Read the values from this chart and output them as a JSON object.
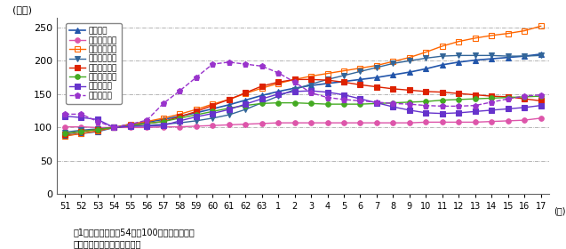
{
  "ylabel": "(指数)",
  "note1": "注1：指数は、昭和54年を100とした場合の値",
  "note2": "　２：国土交通省資料による",
  "ylim": [
    0,
    265
  ],
  "yticks": [
    0,
    50,
    100,
    150,
    200,
    250
  ],
  "xtick_labels": [
    "51",
    "52",
    "53",
    "54",
    "55",
    "56",
    "57",
    "58",
    "59",
    "60",
    "61",
    "62",
    "63",
    "1",
    "2",
    "3",
    "4",
    "5",
    "6",
    "7",
    "8",
    "9",
    "10",
    "11",
    "12",
    "13",
    "14",
    "15",
    "16",
    "17"
  ],
  "year_label": "(年)",
  "series": [
    {
      "name": "車両合計",
      "color": "#2255aa",
      "marker": "^",
      "marker_size": 4,
      "linestyle": "-",
      "linewidth": 1.2,
      "markerface": "fill",
      "values": [
        88,
        91,
        94,
        100,
        105,
        108,
        112,
        117,
        122,
        128,
        134,
        141,
        148,
        154,
        159,
        163,
        166,
        169,
        172,
        175,
        179,
        183,
        188,
        194,
        198,
        201,
        203,
        205,
        207,
        210
      ]
    },
    {
      "name": "事業用乗用車",
      "color": "#dd55aa",
      "marker": "o",
      "marker_size": 4,
      "linestyle": "-",
      "linewidth": 1.0,
      "markerface": "fill",
      "values": [
        101,
        101,
        100,
        100,
        100,
        100,
        101,
        101,
        102,
        103,
        104,
        105,
        106,
        107,
        107,
        107,
        107,
        107,
        107,
        107,
        107,
        107,
        108,
        108,
        108,
        108,
        109,
        110,
        111,
        114
      ]
    },
    {
      "name": "自家用乗用車",
      "color": "#ff6600",
      "marker": "s",
      "marker_size": 4,
      "linestyle": "-",
      "linewidth": 1.0,
      "markerface": "none",
      "values": [
        87,
        91,
        95,
        100,
        105,
        109,
        114,
        120,
        127,
        135,
        142,
        151,
        159,
        166,
        172,
        177,
        181,
        185,
        189,
        193,
        199,
        205,
        213,
        222,
        229,
        234,
        238,
        241,
        245,
        252
      ]
    },
    {
      "name": "事業用貨物車",
      "color": "#336699",
      "marker": "v",
      "marker_size": 5,
      "linestyle": "-",
      "linewidth": 1.0,
      "markerface": "fill",
      "values": [
        93,
        96,
        98,
        100,
        102,
        103,
        105,
        107,
        110,
        114,
        119,
        127,
        137,
        147,
        157,
        165,
        172,
        178,
        184,
        190,
        196,
        200,
        204,
        207,
        208,
        208,
        208,
        207,
        207,
        208
      ]
    },
    {
      "name": "自家用貨物車",
      "color": "#dd2200",
      "marker": "s",
      "marker_size": 5,
      "linestyle": "-",
      "linewidth": 1.0,
      "markerface": "fill",
      "values": [
        90,
        94,
        97,
        100,
        103,
        106,
        109,
        116,
        124,
        133,
        142,
        152,
        162,
        168,
        172,
        172,
        171,
        168,
        164,
        161,
        158,
        156,
        154,
        153,
        151,
        149,
        147,
        146,
        143,
        140
      ]
    },
    {
      "name": "特殊・特軽車",
      "color": "#44aa22",
      "marker": "o",
      "marker_size": 4,
      "linestyle": "-",
      "linewidth": 1.0,
      "markerface": "fill",
      "values": [
        91,
        94,
        97,
        100,
        103,
        106,
        109,
        114,
        119,
        124,
        129,
        133,
        136,
        137,
        137,
        136,
        135,
        135,
        135,
        136,
        137,
        138,
        139,
        141,
        142,
        143,
        144,
        145,
        146,
        147
      ]
    },
    {
      "name": "自動二輪車",
      "color": "#6633cc",
      "marker": "s",
      "marker_size": 4,
      "linestyle": "-",
      "linewidth": 1.0,
      "markerface": "fill",
      "values": [
        117,
        115,
        112,
        100,
        102,
        102,
        103,
        110,
        116,
        121,
        127,
        135,
        143,
        150,
        154,
        155,
        153,
        149,
        143,
        137,
        131,
        126,
        122,
        121,
        122,
        124,
        126,
        128,
        130,
        133
      ]
    },
    {
      "name": "原付自転車",
      "color": "#9933cc",
      "marker": "p",
      "marker_size": 5,
      "linestyle": "--",
      "linewidth": 1.0,
      "markerface": "fill",
      "values": [
        120,
        120,
        109,
        100,
        105,
        111,
        136,
        155,
        175,
        195,
        198,
        195,
        192,
        182,
        168,
        152,
        145,
        142,
        140,
        138,
        136,
        135,
        133,
        132,
        132,
        133,
        138,
        143,
        147,
        149
      ]
    }
  ],
  "grid_color": "#999999",
  "grid_linestyle": "-.",
  "grid_linewidth": 0.5,
  "background_color": "#ffffff",
  "figsize": [
    6.37,
    2.8
  ],
  "dpi": 100
}
